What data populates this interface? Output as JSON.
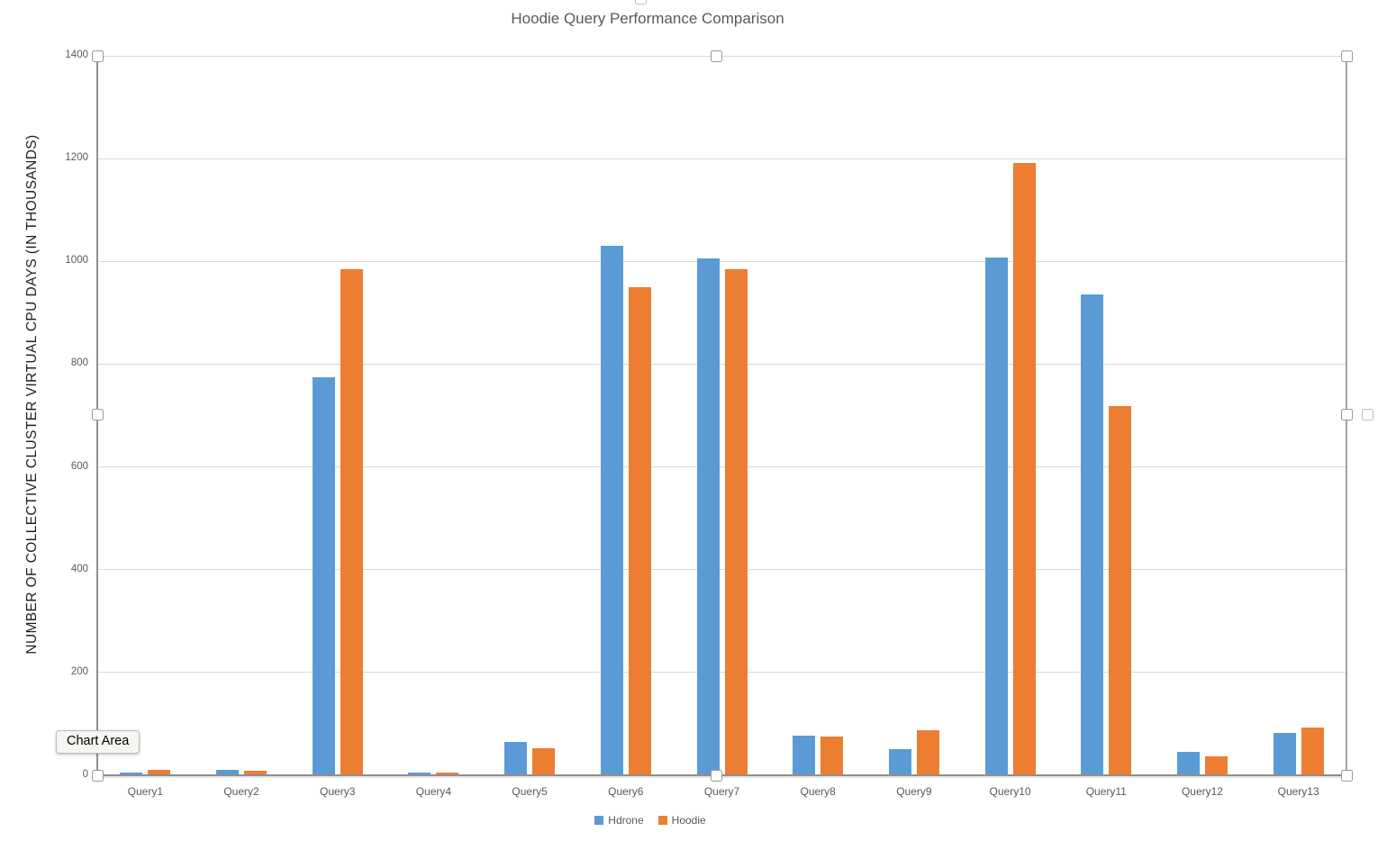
{
  "chart": {
    "title": "Hoodie Query Performance Comparison",
    "tooltip_label": "Chart Area"
  },
  "chart_data": {
    "type": "bar",
    "title": "Hoodie Query Performance Comparison",
    "xlabel": "",
    "ylabel": "NUMBER OF COLLECTIVE CLUSTER VIRTUAL CPU DAYS (IN THOUSANDS)",
    "categories": [
      "Query1",
      "Query2",
      "Query3",
      "Query4",
      "Query5",
      "Query6",
      "Query7",
      "Query8",
      "Query9",
      "Query10",
      "Query11",
      "Query12",
      "Query13"
    ],
    "series": [
      {
        "name": "Hdrone",
        "color": "#5B9BD5",
        "values": [
          6,
          10,
          775,
          6,
          65,
          1030,
          1005,
          77,
          51,
          1008,
          935,
          45,
          83
        ]
      },
      {
        "name": "Hoodie",
        "color": "#ED7D31",
        "values": [
          10,
          9,
          985,
          5,
          53,
          950,
          985,
          76,
          88,
          1192,
          718,
          36,
          92
        ]
      }
    ],
    "ylim": [
      0,
      1400
    ],
    "ytick_interval": 200,
    "grid": true,
    "legend_position": "bottom",
    "ui_colors": {
      "gridline": "#d9d9d9",
      "axis": "#8f8f8f",
      "tick_text": "#595959",
      "title_text": "#595959"
    }
  }
}
